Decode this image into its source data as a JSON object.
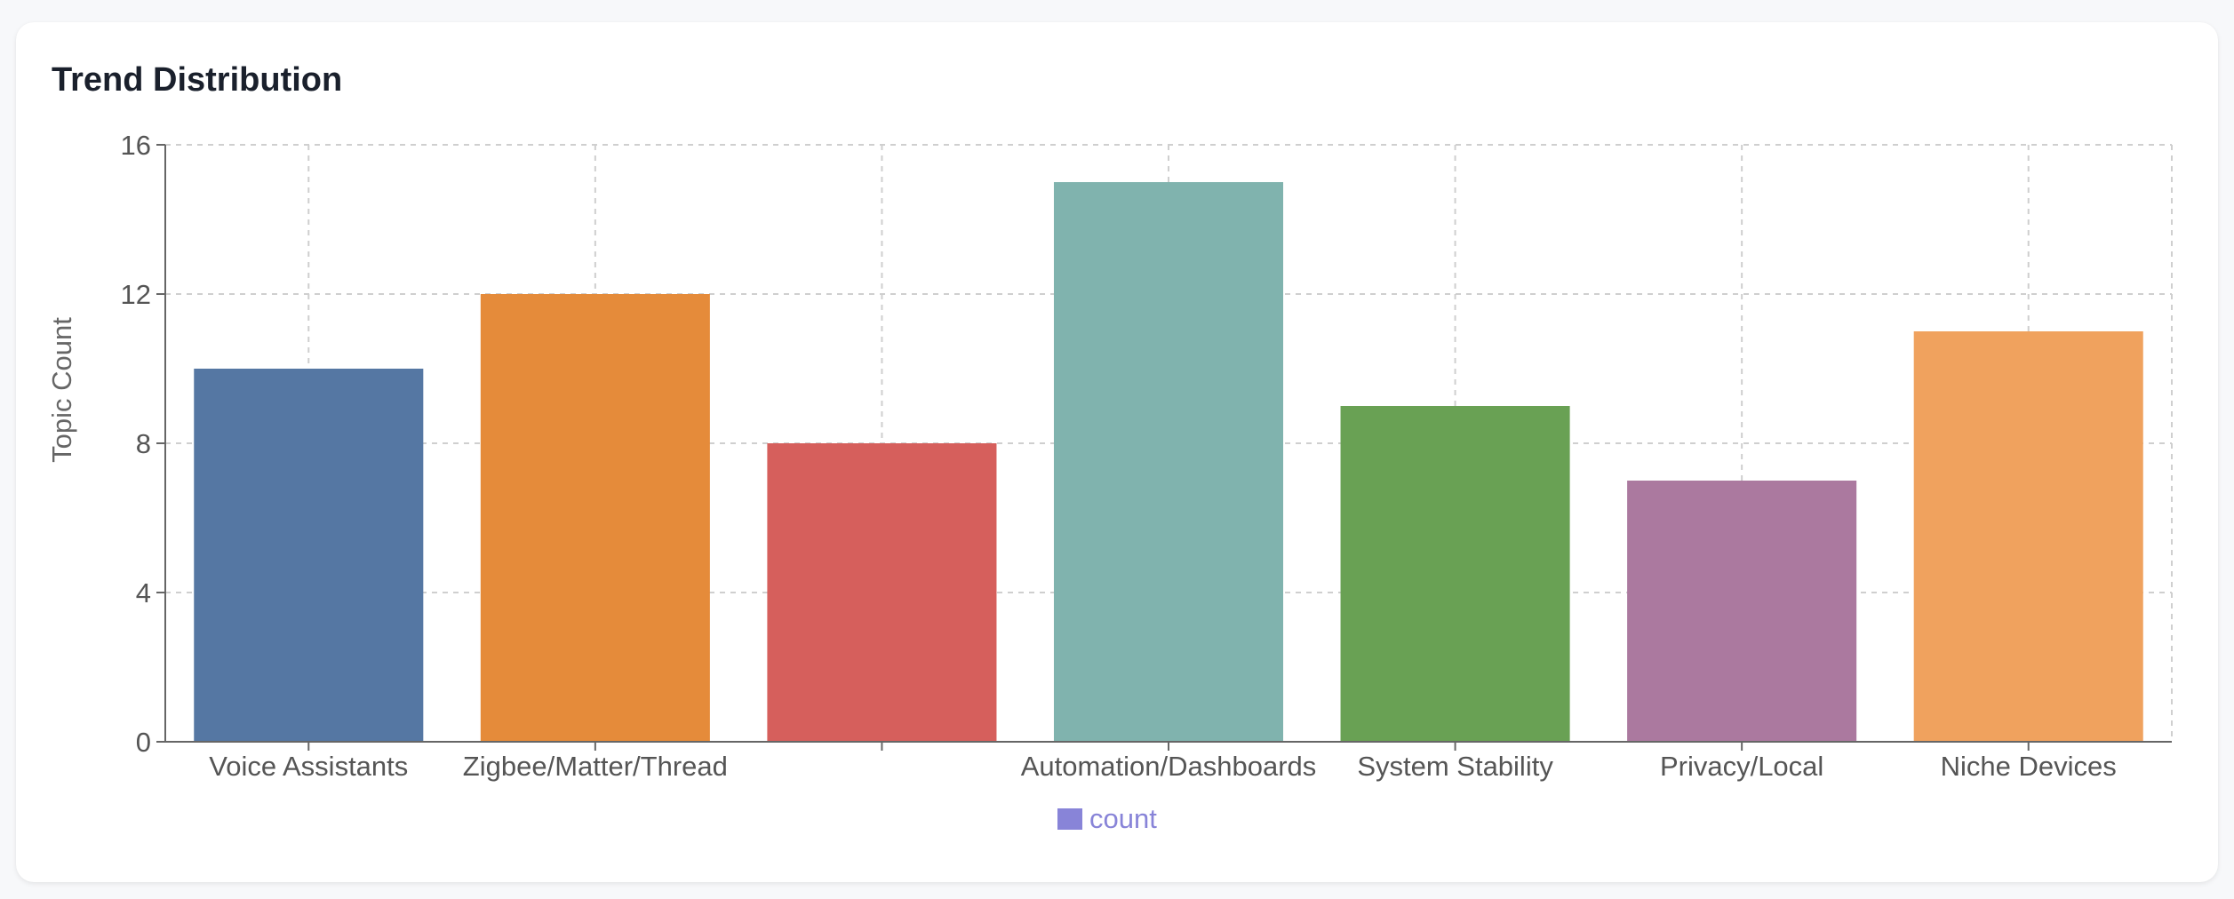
{
  "card": {
    "title": "Trend Distribution"
  },
  "chart_data": {
    "type": "bar",
    "categories": [
      "Voice Assistants",
      "Zigbee/Matter/Thread",
      "",
      "Automation/Dashboards",
      "System Stability",
      "Privacy/Local",
      "Niche Devices"
    ],
    "series": [
      {
        "name": "count",
        "values": [
          10,
          12,
          8,
          15,
          9,
          7,
          11
        ]
      }
    ],
    "bar_colors": [
      "#5577a3",
      "#e58b3a",
      "#d65f5c",
      "#80b3ae",
      "#69a154",
      "#ab799f",
      "#f0a25e"
    ],
    "legend_color": "#8884d8",
    "xlabel": "",
    "ylabel": "Topic Count",
    "ylim": [
      0,
      16
    ],
    "yticks": [
      0,
      4,
      8,
      12,
      16
    ],
    "grid": true,
    "legend_position": "bottom-center"
  }
}
